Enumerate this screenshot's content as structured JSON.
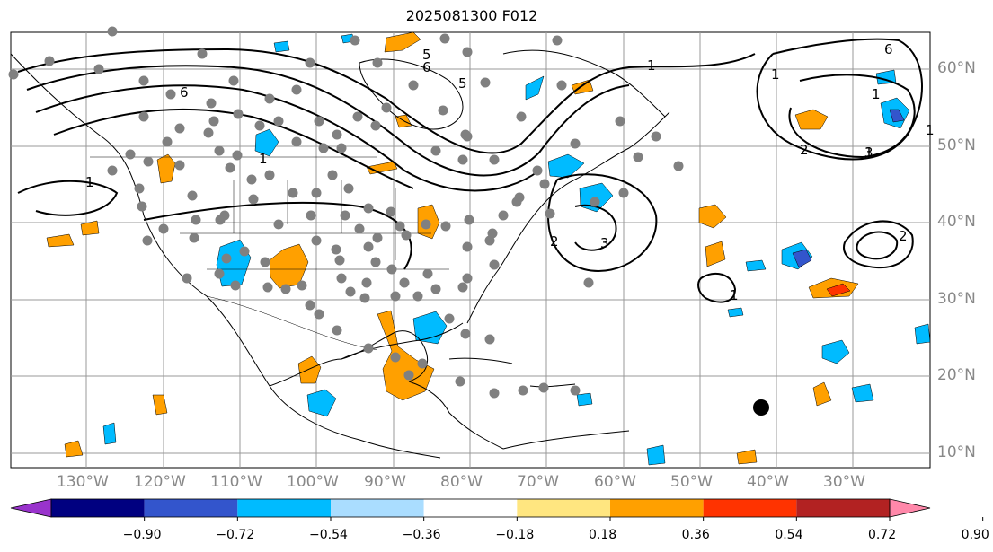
{
  "title": "2025081300 F012",
  "lon_labels": [
    "130°W",
    "120°W",
    "110°W",
    "100°W",
    "90°W",
    "80°W",
    "70°W",
    "60°W",
    "50°W",
    "40°W",
    "30°W"
  ],
  "lat_labels": [
    "60°N",
    "50°N",
    "40°N",
    "30°N",
    "20°N",
    "10°N"
  ],
  "colorbar": {
    "ticks": [
      "−0.90",
      "−0.72",
      "−0.54",
      "−0.36",
      "−0.18",
      "0.18",
      "0.36",
      "0.54",
      "0.72",
      "0.90"
    ],
    "colors": [
      "#9933cc",
      "#000080",
      "#3355cc",
      "#00bbff",
      "#aaddff",
      "#ffffff",
      "#ffe680",
      "#ffa000",
      "#ff3300",
      "#b22222",
      "#ff88aa"
    ]
  },
  "contour_labels": [
    "5",
    "6",
    "1",
    "1",
    "6",
    "1",
    "1",
    "1",
    "2",
    "1",
    "1",
    "6",
    "3",
    "5",
    "2",
    "3",
    "2",
    "1"
  ],
  "colors": {
    "grid": "#999999",
    "contour": "#000000",
    "station": "#808080",
    "positive": "#ffa000",
    "negative": "#00bbff"
  }
}
